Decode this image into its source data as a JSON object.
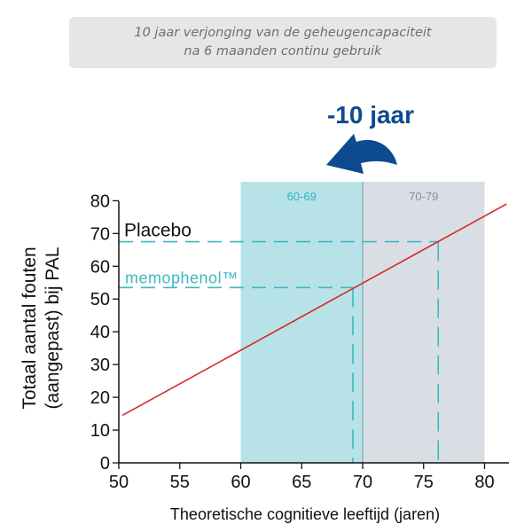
{
  "caption": {
    "line1": "10 jaar verjonging van de geheugencapaciteit",
    "line2": "na 6 maanden continu gebruik"
  },
  "arrow": {
    "label": "-10 jaar",
    "color": "#0d4a8f"
  },
  "colors": {
    "line": "#d9262a",
    "dash": "#3bb8c2",
    "band1": "#b7e3e8",
    "band2": "#d9dee5",
    "band1_text": "#2bb4c0",
    "band2_text": "#8a8f96"
  },
  "chart_data": {
    "type": "line",
    "title": "",
    "xlabel": "Theoretische cognitieve leeftijd (jaren)",
    "ylabel_lines": [
      "Totaal aantal fouten",
      "(aangepast) bij PAL"
    ],
    "xlim": [
      50,
      82
    ],
    "ylim": [
      0,
      82
    ],
    "x_ticks": [
      50,
      55,
      60,
      65,
      70,
      75,
      80
    ],
    "y_ticks": [
      0,
      10,
      20,
      30,
      40,
      50,
      60,
      70,
      80
    ],
    "grid": false,
    "series": [
      {
        "x": [
          50.3,
          81.8
        ],
        "y": [
          14.5,
          79
        ]
      }
    ],
    "bands": [
      {
        "label": "60-69",
        "x_from": 60,
        "x_to": 70
      },
      {
        "label": "70-79",
        "x_from": 70,
        "x_to": 80
      }
    ],
    "reference_levels": [
      {
        "label": "Placebo",
        "y": 67.5,
        "x": 76.2
      },
      {
        "label": "memophenol™",
        "y": 53.5,
        "x": 69.2
      }
    ]
  }
}
